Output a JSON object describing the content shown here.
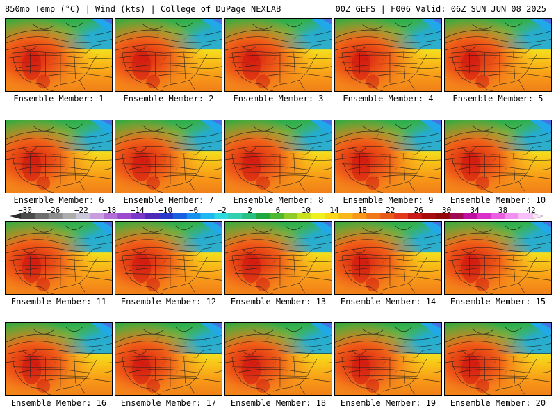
{
  "header": {
    "title_left": "850mb Temp (°C) | Wind (kts) | College of DuPage NEXLAB",
    "title_right": "00Z GEFS | F006 Valid: 06Z SUN JUN 08 2025"
  },
  "panels": [
    {
      "label": "Ensemble Member: 1"
    },
    {
      "label": "Ensemble Member: 2"
    },
    {
      "label": "Ensemble Member: 3"
    },
    {
      "label": "Ensemble Member: 4"
    },
    {
      "label": "Ensemble Member: 5"
    },
    {
      "label": "Ensemble Member: 6"
    },
    {
      "label": "Ensemble Member: 7"
    },
    {
      "label": "Ensemble Member: 8"
    },
    {
      "label": "Ensemble Member: 9"
    },
    {
      "label": "Ensemble Member: 10"
    },
    {
      "label": "Ensemble Member: 11"
    },
    {
      "label": "Ensemble Member: 12"
    },
    {
      "label": "Ensemble Member: 13"
    },
    {
      "label": "Ensemble Member: 14"
    },
    {
      "label": "Ensemble Member: 15"
    },
    {
      "label": "Ensemble Member: 16"
    },
    {
      "label": "Ensemble Member: 17"
    },
    {
      "label": "Ensemble Member: 18"
    },
    {
      "label": "Ensemble Member: 19"
    },
    {
      "label": "Ensemble Member: 20"
    }
  ],
  "colorbar": {
    "labels": [
      "−30",
      "−26",
      "−22",
      "−18",
      "−14",
      "−10",
      "−6",
      "−2",
      "2",
      "6",
      "10",
      "14",
      "18",
      "22",
      "26",
      "30",
      "34",
      "38",
      "42"
    ],
    "colors": [
      "#4a4a4a",
      "#6e6e6e",
      "#8e8e8e",
      "#acacac",
      "#c8c8d8",
      "#c79de0",
      "#b070d8",
      "#9b4ad0",
      "#7a38c8",
      "#5028b8",
      "#2838c8",
      "#1860e0",
      "#1890ee",
      "#20b8f0",
      "#30d8e0",
      "#30d0b0",
      "#28c080",
      "#20a840",
      "#50b830",
      "#90cc28",
      "#c8e020",
      "#f0f020",
      "#f8d818",
      "#f8b818",
      "#f89818",
      "#f07818",
      "#e85818",
      "#e03818",
      "#c81818",
      "#a80c0c",
      "#900808",
      "#a00850",
      "#c010a0",
      "#d830c8",
      "#e860e0",
      "#f090f0",
      "#f8c0f8"
    ]
  }
}
